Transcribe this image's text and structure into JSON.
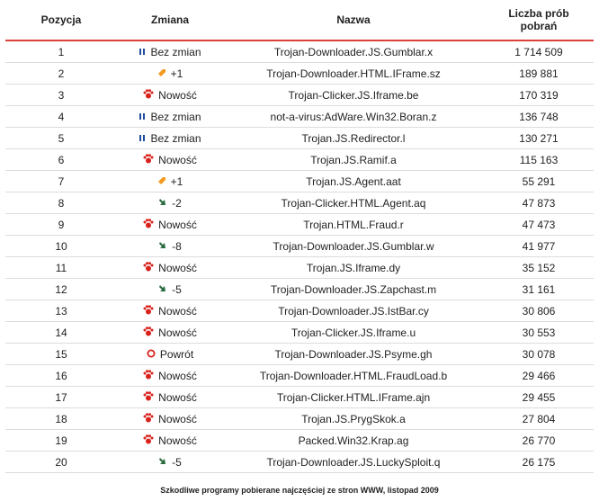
{
  "header": [
    "Pozycja",
    "Zmiana",
    "Nazwa",
    "Liczba prób pobrań"
  ],
  "rows": [
    [
      "1",
      "Bez zmian",
      "Trojan-Downloader.JS.Gumblar.x",
      "1 714 509"
    ],
    [
      "2",
      "+1",
      "Trojan-Downloader.HTML.IFrame.sz",
      "189 881"
    ],
    [
      "3",
      "Nowość",
      "Trojan-Clicker.JS.Iframe.be",
      "170 319"
    ],
    [
      "4",
      "Bez zmian",
      "not-a-virus:AdWare.Win32.Boran.z",
      "136 748"
    ],
    [
      "5",
      "Bez zmian",
      "Trojan.JS.Redirector.l",
      "130 271"
    ],
    [
      "6",
      "Nowość",
      "Trojan.JS.Ramif.a",
      "115 163"
    ],
    [
      "7",
      "+1",
      "Trojan.JS.Agent.aat",
      "55 291"
    ],
    [
      "8",
      "-2",
      "Trojan-Clicker.HTML.Agent.aq",
      "47 873"
    ],
    [
      "9",
      "Nowość",
      "Trojan.HTML.Fraud.r",
      "47 473"
    ],
    [
      "10",
      "-8",
      "Trojan-Downloader.JS.Gumblar.w",
      "41 977"
    ],
    [
      "11",
      "Nowość",
      "Trojan.JS.Iframe.dy",
      "35 152"
    ],
    [
      "12",
      "-5",
      "Trojan-Downloader.JS.Zapchast.m",
      "31 161"
    ],
    [
      "13",
      "Nowość",
      "Trojan-Downloader.JS.IstBar.cy",
      "30 806"
    ],
    [
      "14",
      "Nowość",
      "Trojan-Clicker.JS.Iframe.u",
      "30 553"
    ],
    [
      "15",
      "Powrót",
      "Trojan-Downloader.JS.Psyme.gh",
      "30 078"
    ],
    [
      "16",
      "Nowość",
      "Trojan-Downloader.HTML.FraudLoad.b",
      "29 466"
    ],
    [
      "17",
      "Nowość",
      "Trojan-Clicker.HTML.IFrame.ajn",
      "29 455"
    ],
    [
      "18",
      "Nowość",
      "Trojan.JS.PrygSkok.a",
      "27 804"
    ],
    [
      "19",
      "Nowość",
      "Packed.Win32.Krap.ag",
      "26 770"
    ],
    [
      "20",
      "-5",
      "Trojan-Downloader.JS.LuckySploit.q",
      "26 175"
    ]
  ],
  "caption": "Szkodliwe programy pobierane najczęściej ze stron WWW, listopad 2009"
}
